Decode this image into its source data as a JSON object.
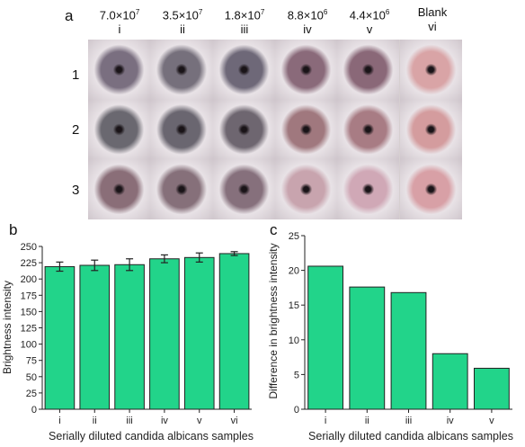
{
  "panel_a": {
    "letter": "a",
    "columns": [
      {
        "mantissa": "7.0×10",
        "exp": "7",
        "roman": "i"
      },
      {
        "mantissa": "3.5×10",
        "exp": "7",
        "roman": "ii"
      },
      {
        "mantissa": "1.8×10",
        "exp": "7",
        "roman": "iii"
      },
      {
        "mantissa": "8.8×10",
        "exp": "6",
        "roman": "iv"
      },
      {
        "mantissa": "4.4×10",
        "exp": "6",
        "roman": "v"
      },
      {
        "mantissa": "Blank",
        "exp": "",
        "roman": "vi"
      }
    ],
    "rows": [
      "1",
      "2",
      "3"
    ],
    "dish_colors": [
      [
        "#7a6f80",
        "#76707c",
        "#6e6878",
        "#8a6a7a",
        "#8a6878",
        "#d9a4a6"
      ],
      [
        "#6a6870",
        "#6a6670",
        "#6e6670",
        "#a0787e",
        "#a87c84",
        "#d49c9e"
      ],
      [
        "#8a6e78",
        "#86707a",
        "#86707c",
        "#c8a4ae",
        "#d0a8b6",
        "#d8a0a6"
      ]
    ]
  },
  "chart_data": [
    {
      "type": "bar",
      "letter": "b",
      "categories": [
        "i",
        "ii",
        "iii",
        "iv",
        "v",
        "vi"
      ],
      "values": [
        219,
        221,
        222,
        231,
        233,
        239
      ],
      "errors": [
        7,
        8,
        9,
        6,
        7,
        3
      ],
      "ylabel": "Brightness intensity",
      "xlabel": "Serially diluted candida albicans samples",
      "ylim": [
        0,
        250
      ],
      "yticks": [
        0,
        25,
        50,
        75,
        100,
        125,
        150,
        175,
        200,
        225,
        250
      ],
      "bar_color": "#22d48a",
      "grid": false
    },
    {
      "type": "bar",
      "letter": "c",
      "categories": [
        "i",
        "ii",
        "iii",
        "iv",
        "v"
      ],
      "values": [
        20.6,
        17.6,
        16.8,
        8.0,
        5.9
      ],
      "ylabel": "Difference in brightness intensity",
      "xlabel": "Serially diluted candida albicans samples",
      "ylim": [
        0,
        25
      ],
      "yticks": [
        0,
        5,
        10,
        15,
        20,
        25
      ],
      "bar_color": "#22d48a",
      "grid": false
    }
  ]
}
